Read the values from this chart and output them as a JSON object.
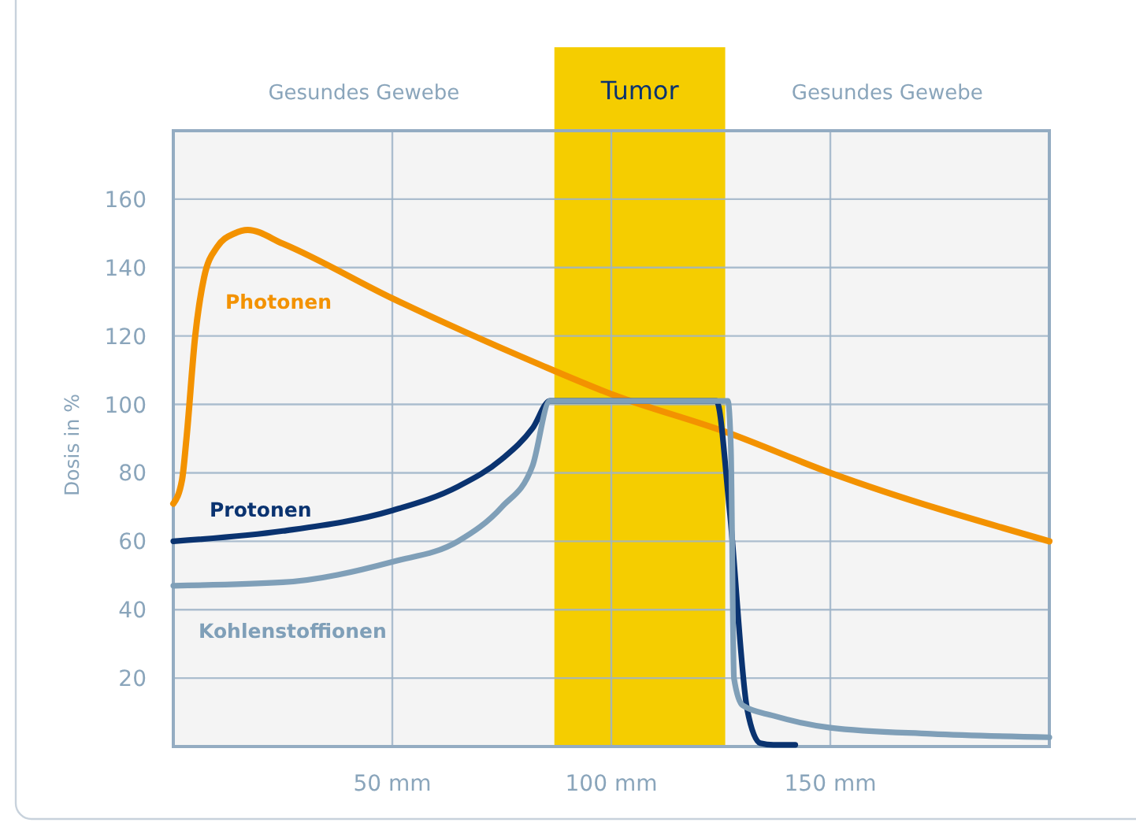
{
  "chart_data": {
    "type": "line",
    "ylabel": "Dosis in %",
    "xlim": [
      0,
      200
    ],
    "ylim": [
      0,
      180
    ],
    "xticks": [
      {
        "value": 50,
        "label": "50 mm"
      },
      {
        "value": 100,
        "label": "100 mm"
      },
      {
        "value": 150,
        "label": "150 mm"
      }
    ],
    "yticks": [
      20,
      40,
      60,
      80,
      100,
      120,
      140,
      160
    ],
    "grid": true,
    "bands": [
      {
        "axis": "x",
        "from": 87,
        "to": 126,
        "label": "Tumor",
        "color": "#f5cd00"
      }
    ],
    "annotations": [
      "Gesundes Gewebe",
      "Gesundes Gewebe"
    ],
    "series": [
      {
        "name": "Photonen",
        "color": "#f39200",
        "x": [
          0,
          2,
          3,
          5,
          7,
          10,
          14,
          17,
          25,
          50,
          83,
          100,
          126,
          150,
          200
        ],
        "values": [
          71,
          78,
          90,
          120,
          137,
          146,
          150,
          151,
          147,
          131,
          112,
          103,
          92,
          80,
          60
        ]
      },
      {
        "name": "Protonen",
        "color": "#0a3370",
        "x": [
          0,
          25,
          50,
          65,
          75,
          82,
          86,
          124,
          127,
          131,
          134,
          137,
          142
        ],
        "values": [
          60,
          63,
          69,
          76,
          84,
          93,
          101,
          101,
          69,
          11,
          1,
          0.5,
          0.5
        ]
      },
      {
        "name": "Kohlenstoffionen",
        "color": "#7f9fb8",
        "x": [
          0,
          25,
          50,
          65,
          75,
          82,
          86,
          126.6,
          127.3,
          128,
          130,
          137,
          150,
          173,
          200
        ],
        "values": [
          47,
          48,
          54,
          60,
          70,
          82,
          101,
          101,
          87,
          20,
          12,
          9,
          5.5,
          3.7,
          2.7
        ]
      }
    ]
  }
}
